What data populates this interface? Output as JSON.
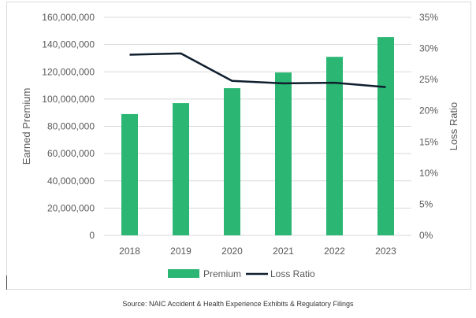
{
  "source": "Source: NAIC Accident & Health Experience Exhibits & Regulatory Filings",
  "chart_data": {
    "type": "bar",
    "categories": [
      "2018",
      "2019",
      "2020",
      "2021",
      "2022",
      "2023"
    ],
    "series": [
      {
        "name": "Premium",
        "type": "bar",
        "axis": "left",
        "color": "#2bb673",
        "values": [
          89000000,
          97000000,
          108000000,
          119500000,
          131000000,
          145500000
        ]
      },
      {
        "name": "Loss Ratio",
        "type": "line",
        "axis": "right",
        "color": "#0f1f2e",
        "values": [
          0.29,
          0.292,
          0.248,
          0.244,
          0.245,
          0.238
        ]
      }
    ],
    "ylabel": "Earned Premium",
    "y2label": "Loss Ratio",
    "ylim": [
      0,
      160000000
    ],
    "y2lim": [
      0,
      0.35
    ],
    "yticks": [
      "0",
      "20,000,000",
      "40,000,000",
      "60,000,000",
      "80,000,000",
      "100,000,000",
      "120,000,000",
      "140,000,000",
      "160,000,000"
    ],
    "y2ticks": [
      "0%",
      "5%",
      "10%",
      "15%",
      "20%",
      "25%",
      "30%",
      "35%"
    ],
    "grid": true,
    "legend_position": "bottom"
  }
}
